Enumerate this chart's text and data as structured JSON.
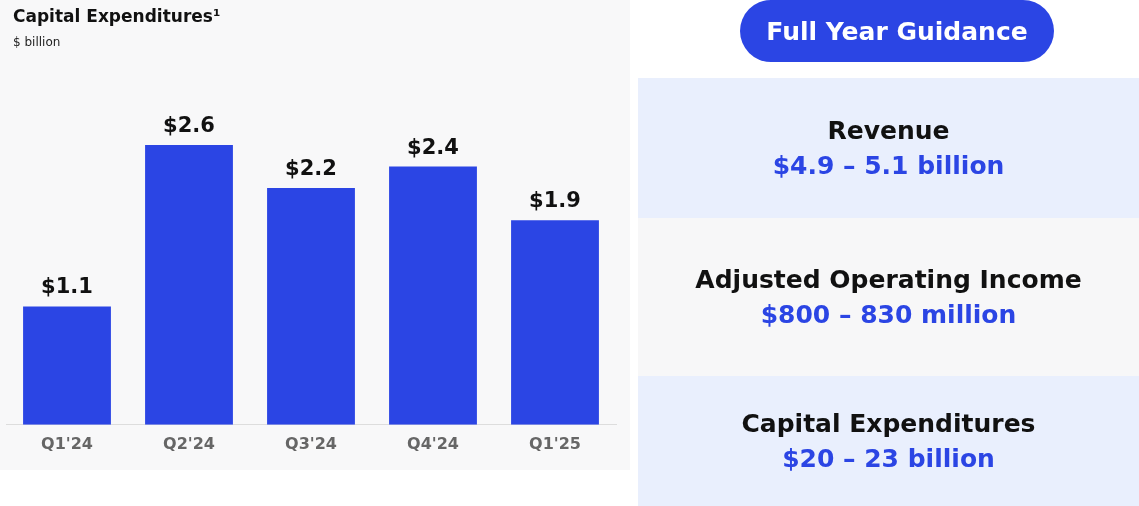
{
  "chart_data": [
    {
      "type": "bar",
      "title": "Capital Expenditures¹",
      "subtitle": "$ billion",
      "categories": [
        "Q1'24",
        "Q2'24",
        "Q3'24",
        "Q4'24",
        "Q1'25"
      ],
      "values": [
        1.1,
        2.6,
        2.2,
        2.4,
        1.9
      ],
      "color": "#2b45e4",
      "value_labels": [
        "$1.1",
        "$2.6",
        "$2.2",
        "$2.4",
        "$1.9"
      ],
      "legend": false,
      "grid": false
    },
    {
      "type": "other",
      "title": "Full Year Guidance",
      "annotations": [
        "Revenue",
        "$4.9 – 5.1 billion",
        "Adjusted Operating Income",
        "$800 – 830 million",
        "Capital Expenditures",
        "$20 – 23 billion"
      ]
    }
  ]
}
